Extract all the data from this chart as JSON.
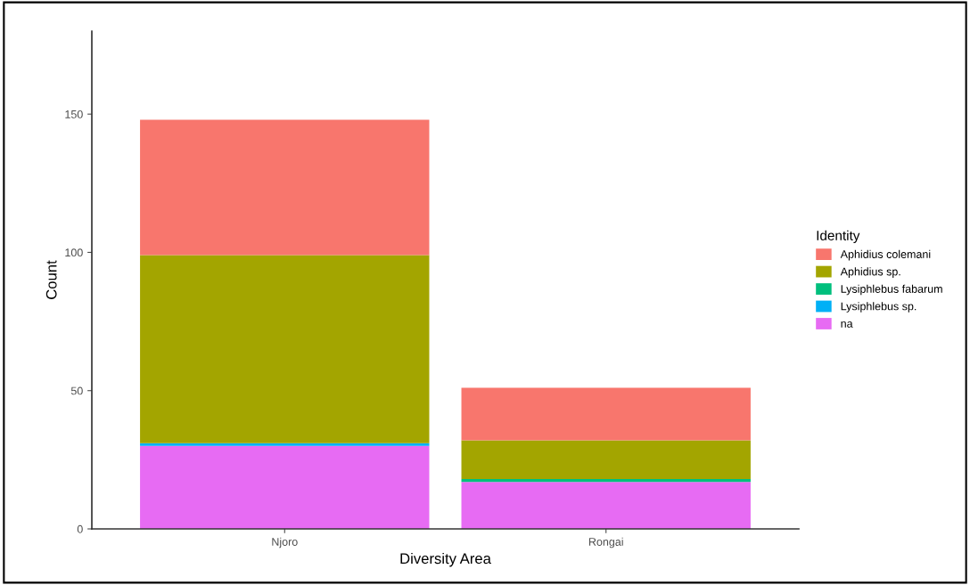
{
  "chart_data": {
    "type": "bar",
    "stacked": true,
    "xlabel": "Diversity Area",
    "ylabel": "Count",
    "legend_title": "Identity",
    "legend": "right",
    "categories": [
      "Njoro",
      "Rongai"
    ],
    "series": [
      {
        "name": "na",
        "color": "#e76bf3",
        "values": [
          30,
          17
        ]
      },
      {
        "name": "Lysiphlebus sp.",
        "color": "#00b0f6",
        "values": [
          1,
          0
        ]
      },
      {
        "name": "Lysiphlebus fabarum",
        "color": "#00bf7d",
        "values": [
          0,
          1
        ]
      },
      {
        "name": "Aphidius sp.",
        "color": "#a3a500",
        "values": [
          68,
          14
        ]
      },
      {
        "name": "Aphidius colemani",
        "color": "#f8766d",
        "values": [
          49,
          19
        ]
      }
    ],
    "ylim": [
      0,
      180
    ],
    "yticks": [
      0,
      50,
      100,
      150
    ],
    "grid": false
  }
}
